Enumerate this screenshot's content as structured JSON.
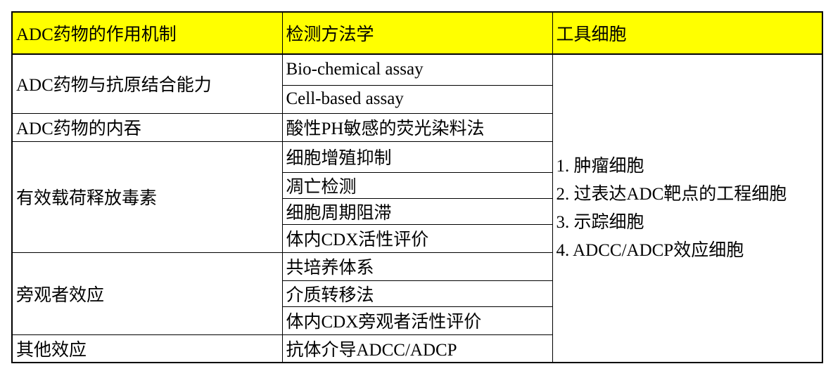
{
  "header": {
    "col1": "ADC药物的作用机制",
    "col2": "检测方法学",
    "col3": "工具细胞",
    "background": "#FFFF00"
  },
  "rows": [
    {
      "mechanism": "ADC药物与抗原结合能力",
      "methods": [
        "Bio-chemical assay",
        "Cell-based assay"
      ]
    },
    {
      "mechanism": "ADC药物的内吞",
      "methods": [
        "酸性PH敏感的荧光染料法"
      ]
    },
    {
      "mechanism": "有效载荷释放毒素",
      "methods": [
        "细胞增殖抑制",
        "凋亡检测",
        "细胞周期阻滞",
        "体内CDX活性评价"
      ]
    },
    {
      "mechanism": "旁观者效应",
      "methods": [
        "共培养体系",
        "介质转移法",
        "体内CDX旁观者活性评价"
      ]
    },
    {
      "mechanism": "其他效应",
      "methods": [
        "抗体介导ADCC/ADCP"
      ]
    }
  ],
  "tool_cells": [
    "1. 肿瘤细胞",
    "2. 过表达ADC靶点的工程细胞",
    "3. 示踪细胞",
    "4. ADCC/ADCP效应细胞"
  ]
}
